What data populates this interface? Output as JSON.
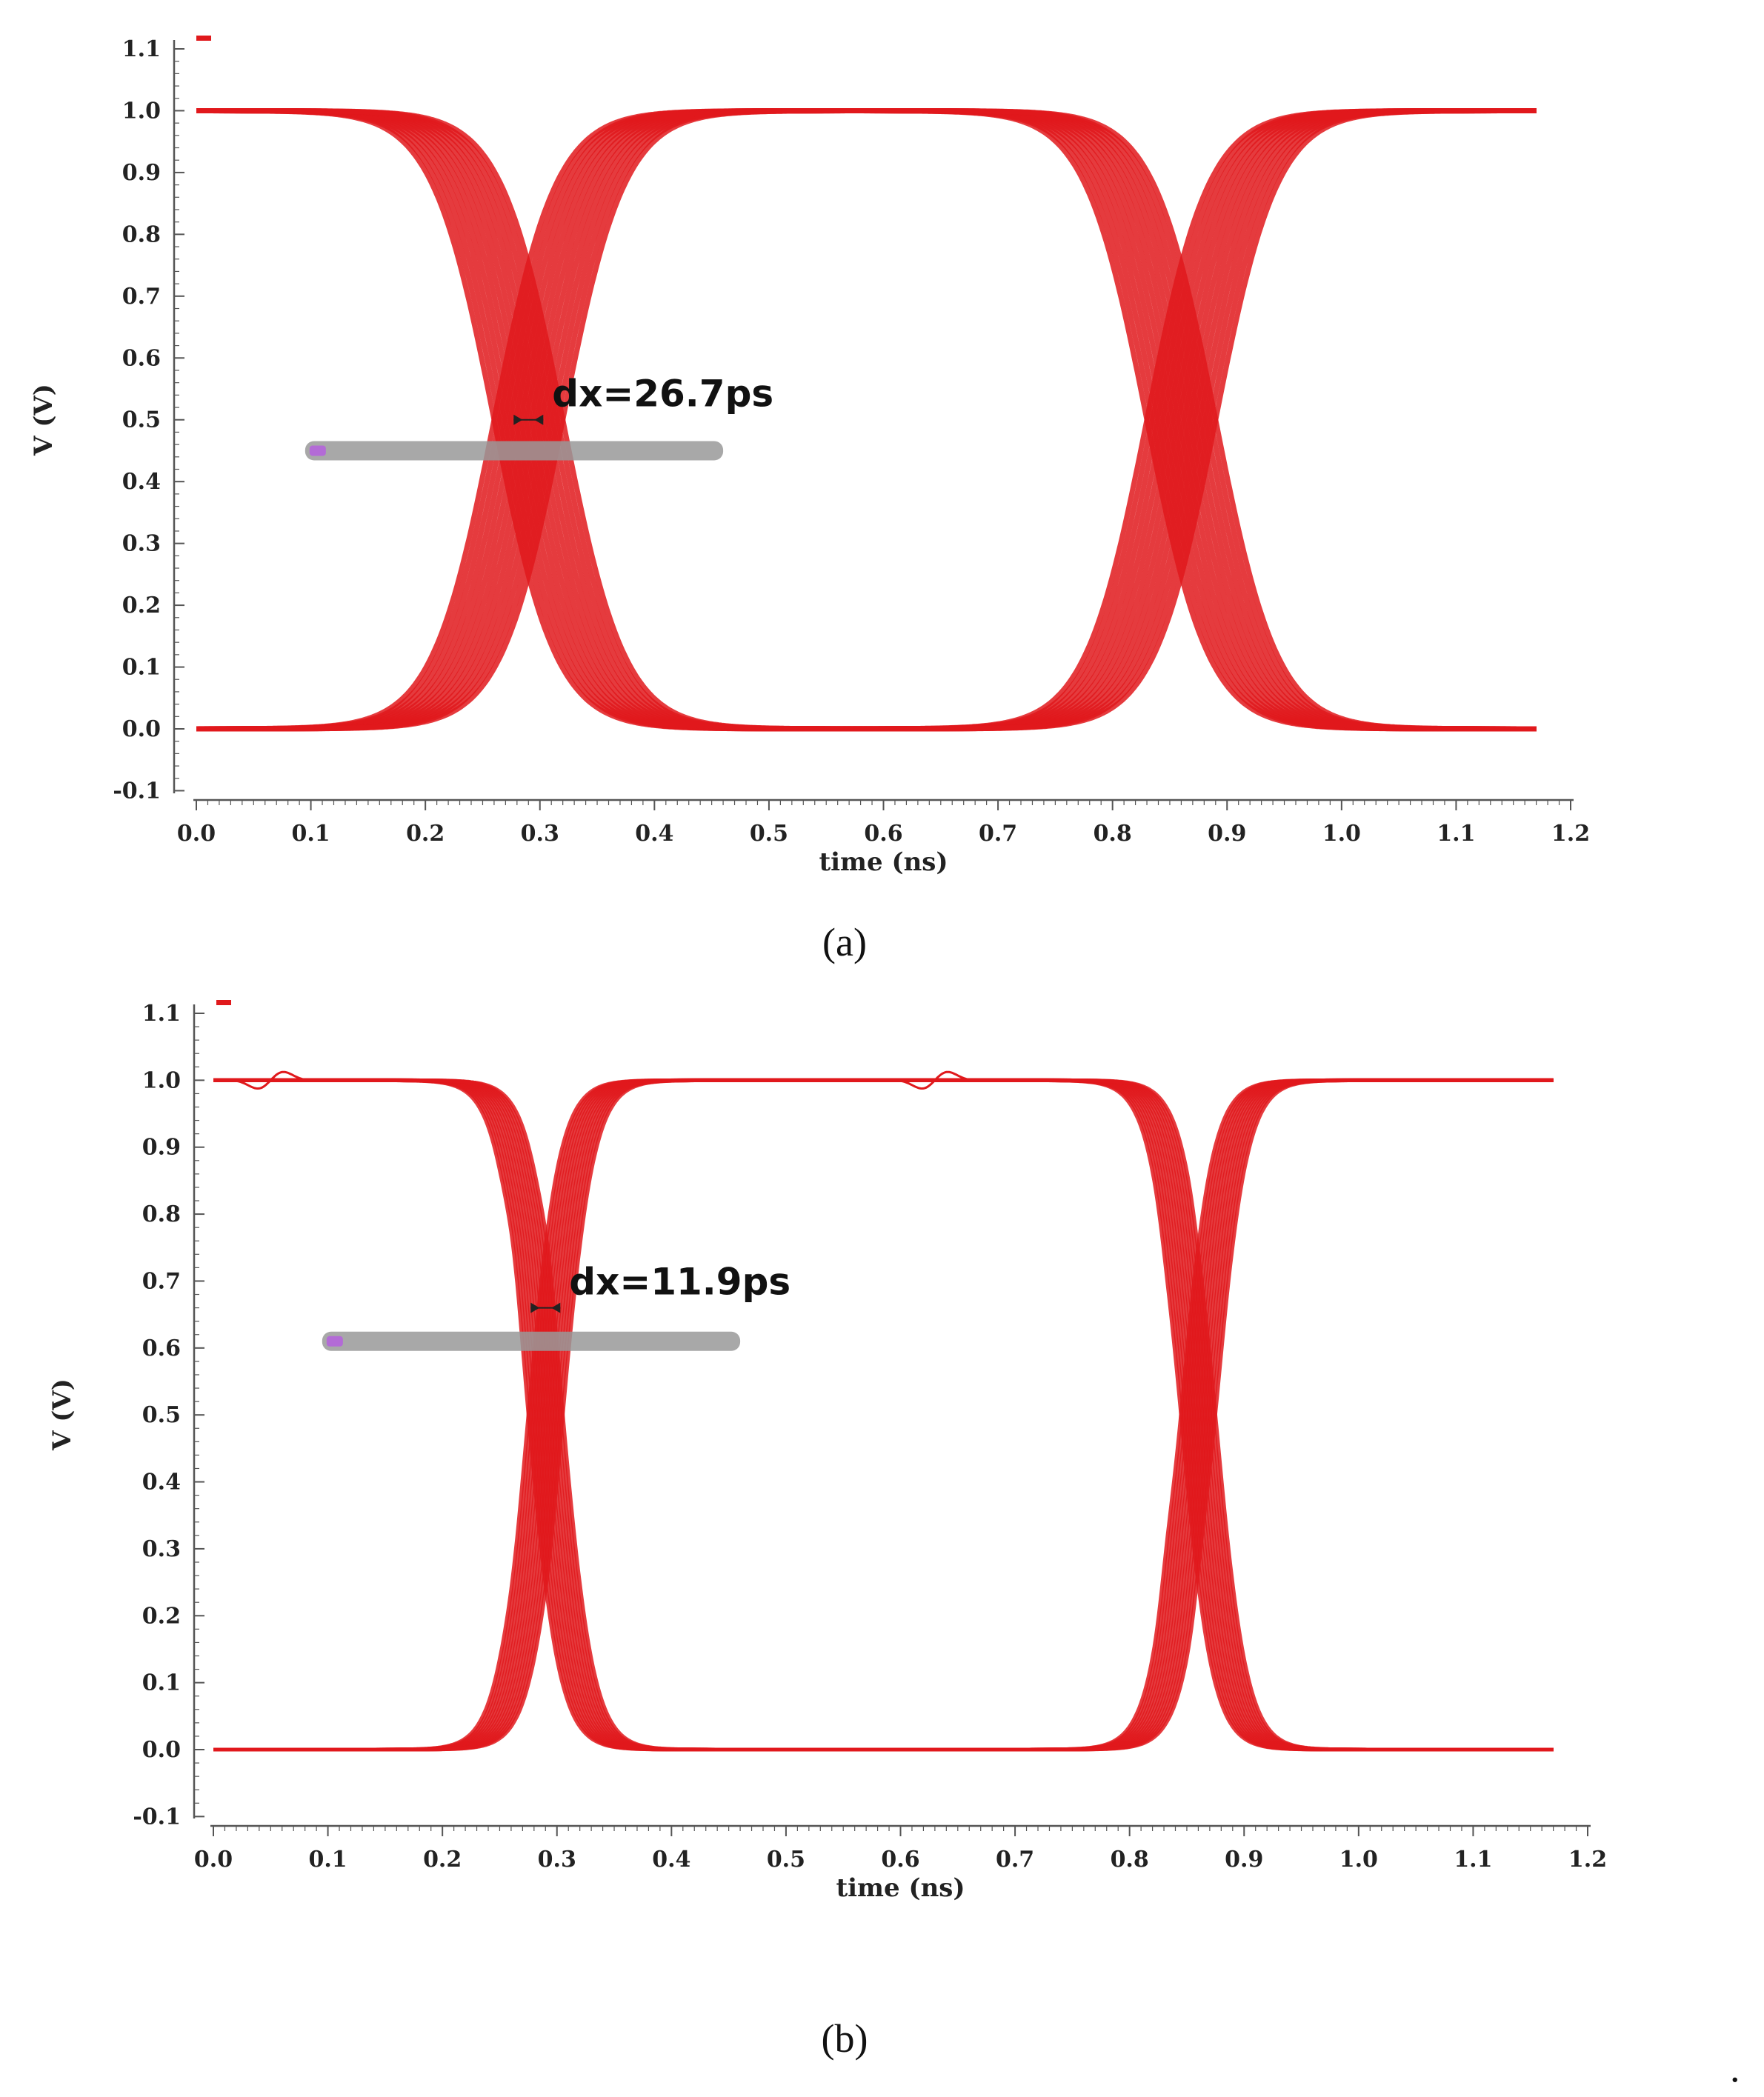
{
  "colors": {
    "trace": "#e0191c",
    "axis": "#555555",
    "marker_box": "#999999",
    "marker_chip": "#b36bd6"
  },
  "chart_data": [
    {
      "type": "line",
      "panel_caption": "(a)",
      "xlabel": "time (ns)",
      "ylabel": "V (V)",
      "xlim": [
        0.0,
        1.2
      ],
      "ylim": [
        -0.1,
        1.1
      ],
      "x_ticks": [
        "0.0",
        "0.1",
        "0.2",
        "0.3",
        "0.4",
        "0.5",
        "0.6",
        "0.7",
        "0.8",
        "0.9",
        "1.0",
        "1.1",
        "1.2"
      ],
      "y_ticks": [
        "1.1",
        "1.0",
        "0.9",
        "0.8",
        "0.7",
        "0.6",
        "0.5",
        "0.4",
        "0.3",
        "0.2",
        "0.1",
        "0.0",
        "-0.1"
      ],
      "legend_placement": "top-left",
      "trace_extent": [
        0.0,
        1.17
      ],
      "crossings_ns": [
        0.29,
        0.86
      ],
      "first_transition": "falling",
      "eye_spread_ns": 0.06,
      "annotation": {
        "text": "dx=26.7ps",
        "x": 0.29,
        "y": 0.5
      },
      "marker_readout_level": 0.45,
      "grid": false
    },
    {
      "type": "line",
      "panel_caption": "(b)",
      "xlabel": "time (ns)",
      "ylabel": "V (V)",
      "xlim": [
        0.0,
        1.2
      ],
      "ylim": [
        -0.1,
        1.1
      ],
      "x_ticks": [
        "0.0",
        "0.1",
        "0.2",
        "0.3",
        "0.4",
        "0.5",
        "0.6",
        "0.7",
        "0.8",
        "0.9",
        "1.0",
        "1.1",
        "1.2"
      ],
      "y_ticks": [
        "1.1",
        "1.0",
        "0.9",
        "0.8",
        "0.7",
        "0.6",
        "0.5",
        "0.4",
        "0.3",
        "0.2",
        "0.1",
        "0.0",
        "-0.1"
      ],
      "legend_placement": "top-left",
      "trace_extent": [
        0.0,
        1.17
      ],
      "crossings_ns": [
        0.29,
        0.86
      ],
      "first_transition": "falling",
      "eye_spread_ns": 0.03,
      "annotation": {
        "text": "dx=11.9ps",
        "x": 0.29,
        "y": 0.66
      },
      "marker_readout_level": 0.61,
      "grid": false
    }
  ],
  "trailing_mark": "."
}
